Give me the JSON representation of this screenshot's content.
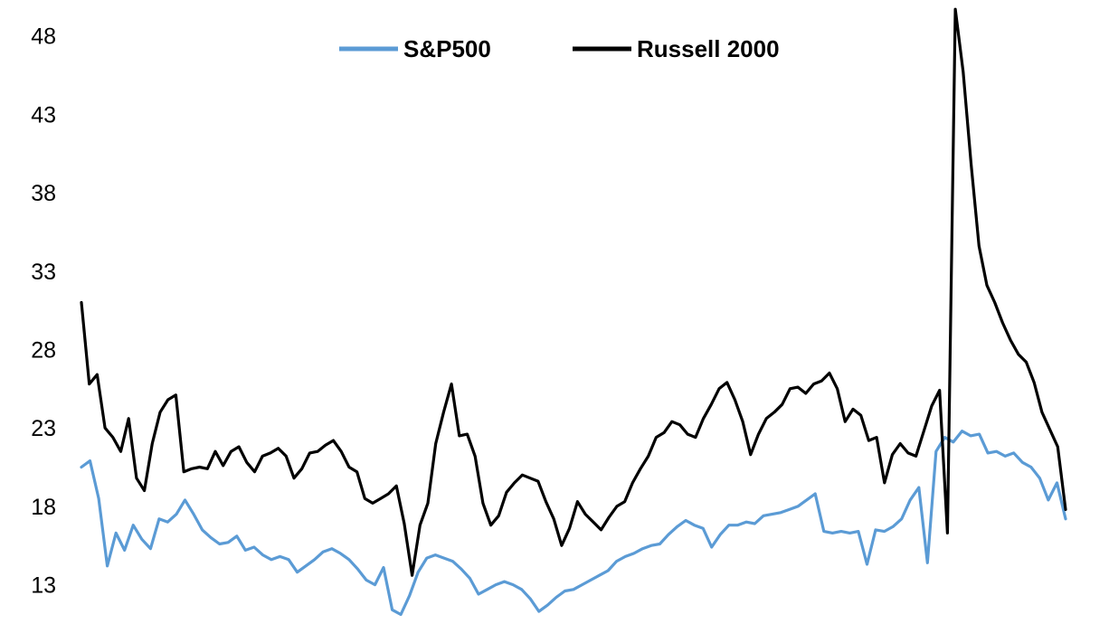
{
  "chart_data": {
    "type": "line",
    "title": "",
    "xlabel": "",
    "ylabel": "",
    "ylim": [
      10.9,
      50.0
    ],
    "yticks": [
      13,
      18,
      23,
      28,
      33,
      38,
      43,
      48
    ],
    "grid": false,
    "legend_position": "top-center",
    "series": [
      {
        "name": "S&P500",
        "color": "#5b9bd5",
        "values": [
          20.5,
          20.9,
          18.5,
          14.2,
          16.3,
          15.2,
          16.8,
          15.9,
          15.3,
          17.2,
          17.0,
          17.5,
          18.4,
          17.5,
          16.5,
          16.0,
          15.6,
          15.7,
          16.1,
          15.2,
          15.4,
          14.9,
          14.6,
          14.8,
          14.6,
          13.8,
          14.2,
          14.6,
          15.1,
          15.3,
          15.0,
          14.6,
          14.0,
          13.3,
          13.0,
          14.1,
          11.4,
          11.1,
          12.3,
          13.8,
          14.7,
          14.9,
          14.7,
          14.5,
          14.0,
          13.4,
          12.4,
          12.7,
          13.0,
          13.2,
          13.0,
          12.7,
          12.1,
          11.3,
          11.7,
          12.2,
          12.6,
          12.7,
          13.0,
          13.3,
          13.6,
          13.9,
          14.5,
          14.8,
          15.0,
          15.3,
          15.5,
          15.6,
          16.2,
          16.7,
          17.1,
          16.8,
          16.6,
          15.4,
          16.2,
          16.8,
          16.8,
          17.0,
          16.9,
          17.4,
          17.5,
          17.6,
          17.8,
          18.0,
          18.4,
          18.8,
          16.4,
          16.3,
          16.4,
          16.3,
          16.4,
          14.3,
          16.5,
          16.4,
          16.7,
          17.2,
          18.4,
          19.2,
          14.4,
          21.5,
          22.4,
          22.1,
          22.8,
          22.5,
          22.6,
          21.4,
          21.5,
          21.2,
          21.4,
          20.8,
          20.5,
          19.8,
          18.4,
          19.5,
          17.2
        ]
      },
      {
        "name": "Russell 2000",
        "color": "#000000",
        "values": [
          31.0,
          25.8,
          26.4,
          23.0,
          22.4,
          21.5,
          23.6,
          19.8,
          19.0,
          22.0,
          24.0,
          24.8,
          25.1,
          20.2,
          20.4,
          20.5,
          20.4,
          21.5,
          20.6,
          21.5,
          21.8,
          20.8,
          20.2,
          21.2,
          21.4,
          21.7,
          21.2,
          19.8,
          20.4,
          21.4,
          21.5,
          21.9,
          22.2,
          21.5,
          20.5,
          20.2,
          18.5,
          18.2,
          18.5,
          18.8,
          19.3,
          16.9,
          13.6,
          16.8,
          18.2,
          22.0,
          24.0,
          25.8,
          22.5,
          22.6,
          21.2,
          18.2,
          16.8,
          17.4,
          18.9,
          19.5,
          20.0,
          19.8,
          19.6,
          18.3,
          17.2,
          15.5,
          16.6,
          18.3,
          17.5,
          17.0,
          16.5,
          17.3,
          18.0,
          18.3,
          19.5,
          20.4,
          21.2,
          22.4,
          22.7,
          23.4,
          23.2,
          22.6,
          22.4,
          23.6,
          24.5,
          25.5,
          25.9,
          24.8,
          23.4,
          21.3,
          22.6,
          23.6,
          24.0,
          24.5,
          25.5,
          25.6,
          25.2,
          25.8,
          26.0,
          26.5,
          25.5,
          23.4,
          24.2,
          23.8,
          22.2,
          22.4,
          19.5,
          21.3,
          22.0,
          21.4,
          21.2,
          22.8,
          24.4,
          25.4,
          16.3,
          49.7,
          45.7,
          39.8,
          34.6,
          32.1,
          31.0,
          29.7,
          28.6,
          27.7,
          27.2,
          25.9,
          24.0,
          22.9,
          21.8,
          17.8
        ]
      }
    ]
  }
}
